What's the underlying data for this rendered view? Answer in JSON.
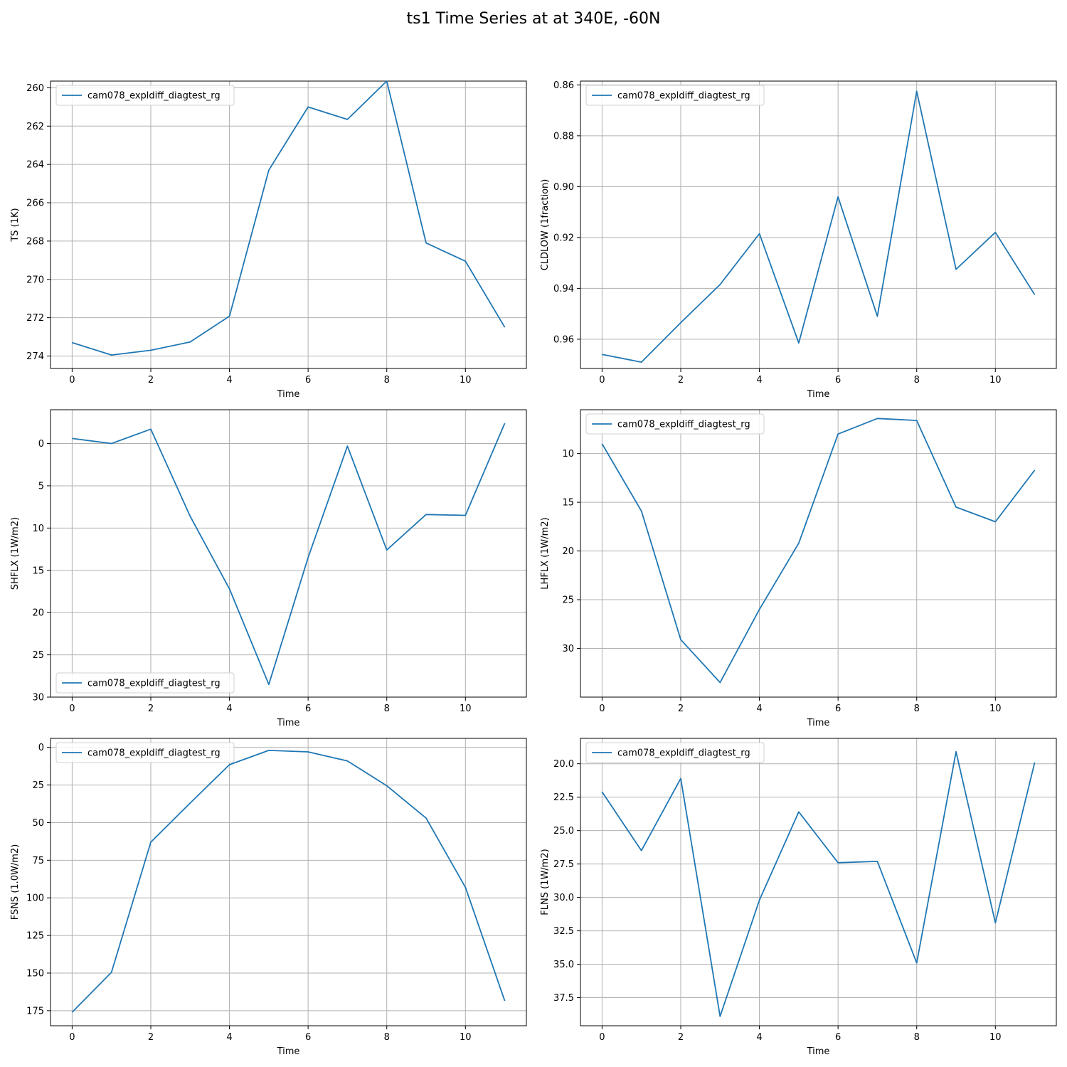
{
  "figure": {
    "title": "ts1 Time Series at at 340E, -60N"
  },
  "colors": {
    "series": "#1f77b4",
    "grid": "#b0b0b0",
    "axis": "#000000"
  },
  "chart_data": [
    {
      "type": "line",
      "xlabel": "Time",
      "ylabel": "TS (1K)",
      "y_inverted": true,
      "grid": true,
      "legend": "upper left",
      "xlim": [
        -0.55,
        11.55
      ],
      "ylim": [
        274.65,
        259.65
      ],
      "xticks": [
        0,
        2,
        4,
        6,
        8,
        10
      ],
      "yticks": [
        260,
        262,
        264,
        266,
        268,
        270,
        272,
        274
      ],
      "ytick_labels": [
        "260",
        "262",
        "264",
        "266",
        "268",
        "270",
        "272",
        "274"
      ],
      "x": [
        0,
        1,
        2,
        3,
        4,
        5,
        6,
        7,
        8,
        9,
        10,
        11
      ],
      "series": [
        {
          "name": "cam078_expldiff_diagtest_rg",
          "values": [
            273.3,
            273.95,
            273.7,
            273.27,
            271.92,
            264.3,
            261.0,
            261.65,
            259.65,
            268.1,
            269.05,
            272.5
          ]
        }
      ]
    },
    {
      "type": "line",
      "xlabel": "Time",
      "ylabel": "CLDLOW (1fraction)",
      "y_inverted": true,
      "grid": true,
      "legend": "upper left",
      "xlim": [
        -0.55,
        11.55
      ],
      "ylim": [
        0.9715,
        0.8585
      ],
      "xticks": [
        0,
        2,
        4,
        6,
        8,
        10
      ],
      "yticks": [
        0.86,
        0.88,
        0.9,
        0.92,
        0.94,
        0.96
      ],
      "ytick_labels": [
        "0.86",
        "0.88",
        "0.90",
        "0.92",
        "0.94",
        "0.96"
      ],
      "x": [
        0,
        1,
        2,
        3,
        4,
        5,
        6,
        7,
        8,
        9,
        10,
        11
      ],
      "series": [
        {
          "name": "cam078_expldiff_diagtest_rg",
          "values": [
            0.966,
            0.969,
            0.9535,
            0.9385,
            0.9185,
            0.9615,
            0.904,
            0.951,
            0.8625,
            0.9325,
            0.918,
            0.9425
          ]
        }
      ]
    },
    {
      "type": "line",
      "xlabel": "Time",
      "ylabel": "SHFLX (1W/m2)",
      "y_inverted": true,
      "grid": true,
      "legend": "lower left",
      "xlim": [
        -0.55,
        11.55
      ],
      "ylim": [
        30.0,
        -4.0
      ],
      "xticks": [
        0,
        2,
        4,
        6,
        8,
        10
      ],
      "yticks": [
        0,
        5,
        10,
        15,
        20,
        25,
        30
      ],
      "ytick_labels": [
        "0",
        "5",
        "10",
        "15",
        "20",
        "25",
        "30"
      ],
      "x": [
        0,
        1,
        2,
        3,
        4,
        5,
        6,
        7,
        8,
        9,
        10,
        11
      ],
      "series": [
        {
          "name": "cam078_expldiff_diagtest_rg",
          "values": [
            -0.6,
            0.0,
            -1.7,
            8.6,
            17.2,
            28.5,
            13.5,
            0.3,
            12.6,
            8.4,
            8.5,
            -2.4
          ]
        }
      ]
    },
    {
      "type": "line",
      "xlabel": "Time",
      "ylabel": "LHFLX (1W/m2)",
      "y_inverted": true,
      "grid": true,
      "legend": "upper left",
      "xlim": [
        -0.55,
        11.55
      ],
      "ylim": [
        35.0,
        5.5
      ],
      "xticks": [
        0,
        2,
        4,
        6,
        8,
        10
      ],
      "yticks": [
        10,
        15,
        20,
        25,
        30
      ],
      "ytick_labels": [
        "10",
        "15",
        "20",
        "25",
        "30"
      ],
      "x": [
        0,
        1,
        2,
        3,
        4,
        5,
        6,
        7,
        8,
        9,
        10,
        11
      ],
      "series": [
        {
          "name": "cam078_expldiff_diagtest_rg",
          "values": [
            9.0,
            15.9,
            29.1,
            33.5,
            26.0,
            19.2,
            8.0,
            6.4,
            6.6,
            15.5,
            17.0,
            11.7
          ]
        }
      ]
    },
    {
      "type": "line",
      "xlabel": "Time",
      "ylabel": "FSNS (1.0W/m2)",
      "y_inverted": true,
      "grid": true,
      "legend": "upper left",
      "xlim": [
        -0.55,
        11.55
      ],
      "ylim": [
        185.0,
        -6.0
      ],
      "xticks": [
        0,
        2,
        4,
        6,
        8,
        10
      ],
      "yticks": [
        0,
        25,
        50,
        75,
        100,
        125,
        150,
        175
      ],
      "ytick_labels": [
        "0",
        "25",
        "50",
        "75",
        "100",
        "125",
        "150",
        "175"
      ],
      "x": [
        0,
        1,
        2,
        3,
        4,
        5,
        6,
        7,
        8,
        9,
        10,
        11
      ],
      "series": [
        {
          "name": "cam078_expldiff_diagtest_rg",
          "values": [
            176.0,
            149.5,
            63.0,
            37.0,
            11.5,
            2.0,
            3.0,
            9.0,
            25.5,
            47.0,
            93.0,
            168.5
          ]
        }
      ]
    },
    {
      "type": "line",
      "xlabel": "Time",
      "ylabel": "FLNS (1W/m2)",
      "y_inverted": true,
      "grid": true,
      "legend": "upper left",
      "xlim": [
        -0.55,
        11.55
      ],
      "ylim": [
        39.6,
        18.1
      ],
      "xticks": [
        0,
        2,
        4,
        6,
        8,
        10
      ],
      "yticks": [
        20.0,
        22.5,
        25.0,
        27.5,
        30.0,
        32.5,
        35.0,
        37.5
      ],
      "ytick_labels": [
        "20.0",
        "22.5",
        "25.0",
        "27.5",
        "30.0",
        "32.5",
        "35.0",
        "37.5"
      ],
      "x": [
        0,
        1,
        2,
        3,
        4,
        5,
        6,
        7,
        8,
        9,
        10,
        11
      ],
      "series": [
        {
          "name": "cam078_expldiff_diagtest_rg",
          "values": [
            22.1,
            26.5,
            21.1,
            38.9,
            30.2,
            23.6,
            27.4,
            27.3,
            34.9,
            19.1,
            31.9,
            19.9
          ]
        }
      ]
    }
  ]
}
